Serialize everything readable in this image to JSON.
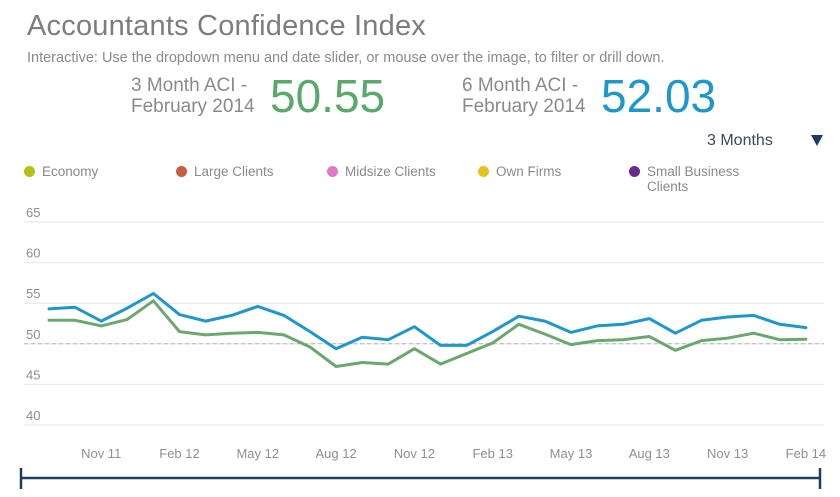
{
  "header": {
    "title": "Accountants Confidence Index",
    "subtitle": "Interactive: Use the dropdown menu and date slider, or mouse over the image, to filter or drill down."
  },
  "kpis": {
    "three_month": {
      "label_line1": "3 Month ACI -",
      "label_line2": "February 2014",
      "value": "50.55",
      "color": "#5aa86a"
    },
    "six_month": {
      "label_line1": "6 Month ACI -",
      "label_line2": "February 2014",
      "value": "52.03",
      "color": "#1e97c9"
    }
  },
  "period_select": {
    "value": "3 Months"
  },
  "legend": [
    {
      "label_line1": "Economy",
      "label_line2": "",
      "color": "#b5c01a"
    },
    {
      "label_line1": "Large Clients",
      "label_line2": "",
      "color": "#c45e3f"
    },
    {
      "label_line1": "Midsize Clients",
      "label_line2": "",
      "color": "#e07ac4"
    },
    {
      "label_line1": "Own Firms",
      "label_line2": "",
      "color": "#e2c21c"
    },
    {
      "label_line1": "Small Business",
      "label_line2": "Clients",
      "color": "#6a2a8e"
    }
  ],
  "chart_data": {
    "type": "line",
    "title": "Accountants Confidence Index",
    "ylim": [
      38,
      67
    ],
    "yticks": [
      40,
      45,
      50,
      55,
      60,
      65
    ],
    "reference_line": 50,
    "x_tick_labels": [
      "Nov 11",
      "Feb 12",
      "May 12",
      "Aug 12",
      "Nov 12",
      "Feb 13",
      "May 13",
      "Aug 13",
      "Nov 13",
      "Feb 14"
    ],
    "x_tick_index": [
      3,
      6,
      9,
      12,
      15,
      18,
      21,
      24,
      27,
      30
    ],
    "series": [
      {
        "name": "6 Month ACI",
        "color": "#1e97c9",
        "values": [
          54.3,
          54.5,
          52.8,
          54.4,
          56.2,
          53.6,
          52.8,
          53.5,
          54.6,
          53.5,
          51.5,
          49.4,
          50.8,
          50.5,
          52.1,
          49.8,
          49.8,
          51.5,
          53.4,
          52.8,
          51.4,
          52.2,
          52.4,
          53.1,
          51.3,
          52.9,
          53.3,
          53.5,
          52.4,
          52.0
        ]
      },
      {
        "name": "3 Month ACI",
        "color": "#6aa870",
        "values": [
          52.9,
          52.9,
          52.2,
          53.0,
          55.3,
          51.5,
          51.1,
          51.3,
          51.4,
          51.1,
          49.6,
          47.2,
          47.7,
          47.5,
          49.4,
          47.5,
          48.8,
          50.1,
          52.4,
          51.2,
          49.9,
          50.4,
          50.5,
          50.9,
          49.2,
          50.4,
          50.7,
          51.3,
          50.5,
          50.55
        ]
      }
    ]
  }
}
